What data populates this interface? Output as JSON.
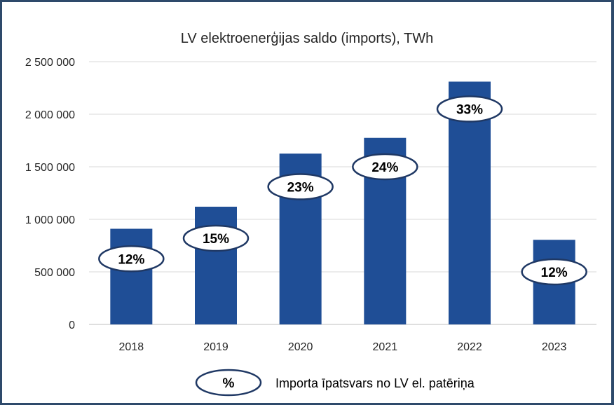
{
  "chart_data": {
    "type": "bar",
    "title": "LV elektroenerģijas saldo (imports), TWh",
    "categories": [
      "2018",
      "2019",
      "2020",
      "2021",
      "2022",
      "2023"
    ],
    "values": [
      910000,
      1120000,
      1625000,
      1775000,
      2310000,
      805000
    ],
    "percent_labels": [
      "12%",
      "15%",
      "23%",
      "24%",
      "33%",
      "12%"
    ],
    "percent_label_values": [
      625000,
      820000,
      1310000,
      1500000,
      2050000,
      500000
    ],
    "yticks": [
      0,
      500000,
      1000000,
      1500000,
      2000000,
      2500000
    ],
    "ytick_labels": [
      "0",
      "500 000",
      "1 000 000",
      "1 500 000",
      "2 000 000",
      "2 500 000"
    ],
    "ylim": [
      0,
      2500000
    ],
    "grid": true,
    "bar_color": "#1f4e96",
    "badge_border_color": "#1f3864",
    "legend": {
      "symbol_text": "%",
      "label": "Importa īpatsvars no LV el. patēriņa",
      "position": "bottom"
    }
  }
}
